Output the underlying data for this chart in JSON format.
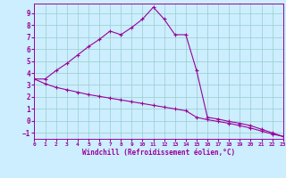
{
  "line1_x": [
    0,
    1,
    2,
    3,
    4,
    5,
    6,
    7,
    8,
    9,
    10,
    11,
    12,
    13,
    14,
    15,
    16,
    17,
    18,
    19,
    20,
    21,
    22,
    23
  ],
  "line1_y": [
    3.5,
    3.5,
    4.2,
    4.8,
    5.5,
    6.2,
    6.8,
    7.5,
    7.2,
    7.8,
    8.5,
    9.5,
    8.5,
    7.2,
    7.2,
    4.2,
    0.3,
    0.15,
    -0.05,
    -0.2,
    -0.4,
    -0.7,
    -1.0,
    -1.3
  ],
  "line2_x": [
    0,
    1,
    2,
    3,
    4,
    5,
    6,
    7,
    8,
    9,
    10,
    11,
    12,
    13,
    14,
    15,
    16,
    17,
    18,
    19,
    20,
    21,
    22,
    23
  ],
  "line2_y": [
    3.5,
    3.1,
    2.8,
    2.6,
    2.4,
    2.2,
    2.05,
    1.9,
    1.75,
    1.6,
    1.45,
    1.3,
    1.15,
    1.0,
    0.85,
    0.3,
    0.1,
    -0.05,
    -0.2,
    -0.4,
    -0.6,
    -0.85,
    -1.1,
    -1.3
  ],
  "color": "#990099",
  "bg_color": "#cceeff",
  "grid_color": "#99cccc",
  "xlabel": "Windchill (Refroidissement éolien,°C)",
  "xlim": [
    0,
    23
  ],
  "ylim": [
    -1.5,
    9.8
  ],
  "yticks": [
    -1,
    0,
    1,
    2,
    3,
    4,
    5,
    6,
    7,
    8,
    9
  ],
  "xticks": [
    0,
    1,
    2,
    3,
    4,
    5,
    6,
    7,
    8,
    9,
    10,
    11,
    12,
    13,
    14,
    15,
    16,
    17,
    18,
    19,
    20,
    21,
    22,
    23
  ],
  "marker": "+",
  "markersize": 3.5,
  "linewidth": 0.8
}
